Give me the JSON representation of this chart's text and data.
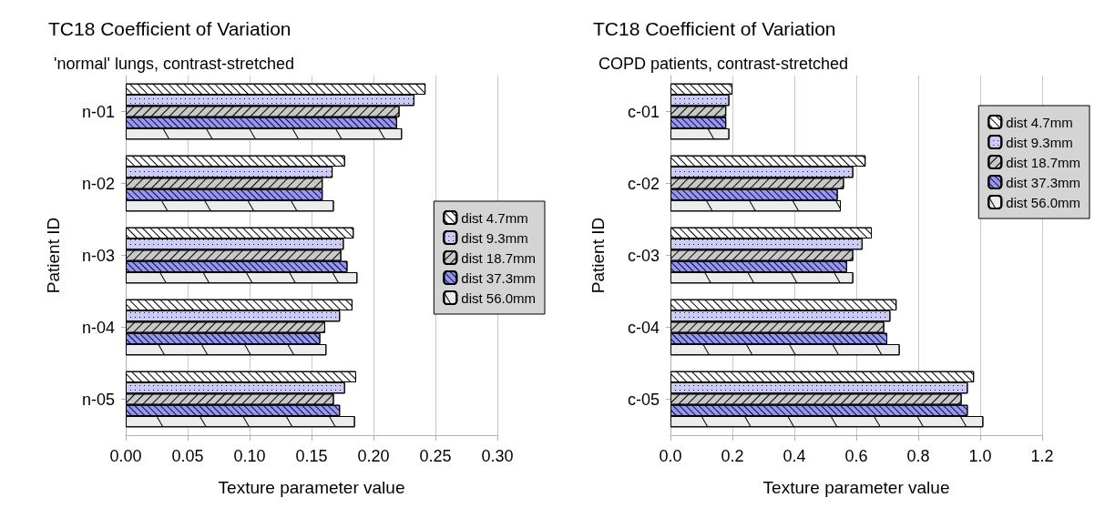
{
  "chart_data": [
    {
      "type": "bar",
      "orientation": "horizontal",
      "title": "TC18 Coefficient of Variation",
      "subtitle": "'normal' lungs, contrast-stretched",
      "xlabel": "Texture parameter value",
      "ylabel": "Patient ID",
      "categories": [
        "n-01",
        "n-02",
        "n-03",
        "n-04",
        "n-05"
      ],
      "xlim": [
        0,
        0.3
      ],
      "xticks": [
        {
          "value": 0,
          "label": "0.00"
        },
        {
          "value": 0.05,
          "label": "0.05"
        },
        {
          "value": 0.1,
          "label": "0.10"
        },
        {
          "value": 0.15,
          "label": "0.15"
        },
        {
          "value": 0.2,
          "label": "0.20"
        },
        {
          "value": 0.25,
          "label": "0.25"
        },
        {
          "value": 0.3,
          "label": "0.30"
        }
      ],
      "grid": "x",
      "legend": "right",
      "series": [
        {
          "name": "dist 4.7mm",
          "color": "#ffffff",
          "values": [
            0.242,
            0.177,
            0.184,
            0.183,
            0.186
          ]
        },
        {
          "name": "dist 9.3mm",
          "color": "#ccccf2",
          "values": [
            0.233,
            0.167,
            0.176,
            0.173,
            0.177
          ]
        },
        {
          "name": "dist 18.7mm",
          "color": "#c8c8c8",
          "values": [
            0.221,
            0.159,
            0.174,
            0.161,
            0.168
          ]
        },
        {
          "name": "dist 37.3mm",
          "color": "#9999dd",
          "values": [
            0.219,
            0.159,
            0.179,
            0.157,
            0.173
          ]
        },
        {
          "name": "dist 56.0mm",
          "color": "#ececec",
          "values": [
            0.223,
            0.168,
            0.187,
            0.162,
            0.185
          ]
        }
      ]
    },
    {
      "type": "bar",
      "orientation": "horizontal",
      "title": "TC18 Coefficient of Variation",
      "subtitle": "COPD patients, contrast-stretched",
      "xlabel": "Texture parameter value",
      "ylabel": "Patient ID",
      "categories": [
        "c-01",
        "c-02",
        "c-03",
        "c-04",
        "c-05"
      ],
      "xlim": [
        0,
        1.2
      ],
      "xticks": [
        {
          "value": 0,
          "label": "0.0"
        },
        {
          "value": 0.2,
          "label": "0.2"
        },
        {
          "value": 0.4,
          "label": "0.4"
        },
        {
          "value": 0.6,
          "label": "0.6"
        },
        {
          "value": 0.8,
          "label": "0.8"
        },
        {
          "value": 1,
          "label": "1.0"
        },
        {
          "value": 1.2,
          "label": "1.2"
        }
      ],
      "grid": "x",
      "legend": "top right",
      "series": [
        {
          "name": "dist 4.7mm",
          "color": "#ffffff",
          "values": [
            0.2,
            0.63,
            0.65,
            0.73,
            0.98
          ]
        },
        {
          "name": "dist 9.3mm",
          "color": "#ccccf2",
          "values": [
            0.19,
            0.59,
            0.62,
            0.71,
            0.96
          ]
        },
        {
          "name": "dist 18.7mm",
          "color": "#c8c8c8",
          "values": [
            0.18,
            0.56,
            0.59,
            0.69,
            0.94
          ]
        },
        {
          "name": "dist 37.3mm",
          "color": "#9999dd",
          "values": [
            0.18,
            0.54,
            0.57,
            0.7,
            0.96
          ]
        },
        {
          "name": "dist 56.0mm",
          "color": "#ececec",
          "values": [
            0.19,
            0.55,
            0.59,
            0.74,
            1.01
          ]
        }
      ]
    }
  ]
}
